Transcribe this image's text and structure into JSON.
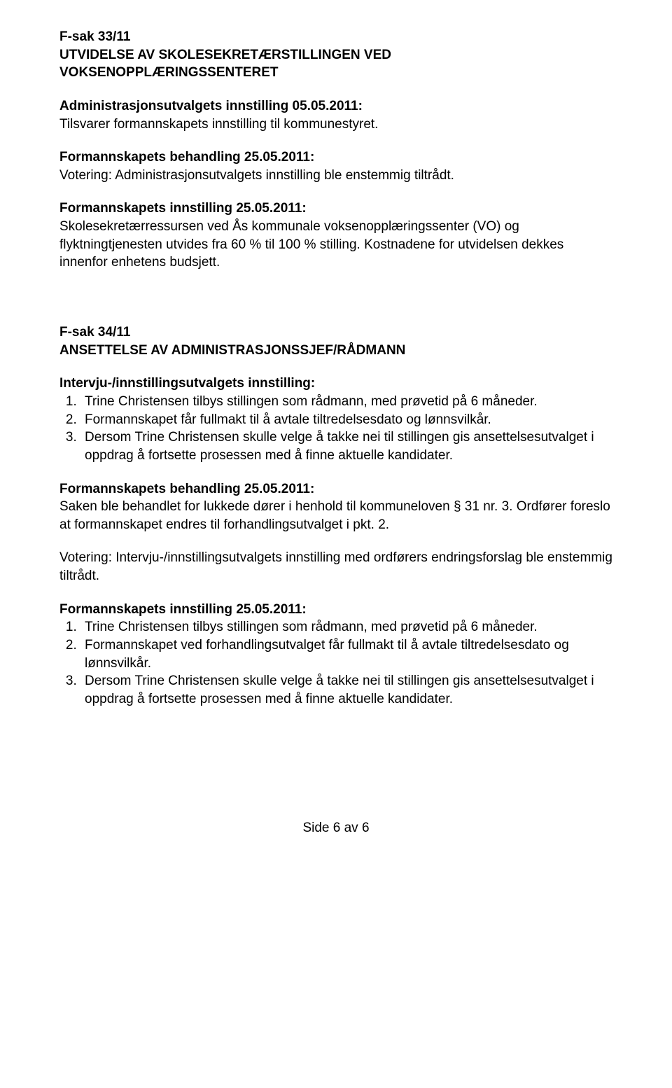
{
  "doc": {
    "text_color": "#000000",
    "background_color": "#ffffff",
    "font_family": "Arial, Helvetica, sans-serif",
    "base_font_size_pt": 14
  },
  "case1": {
    "id": "F-sak 33/11",
    "title_line1": "UTVIDELSE AV SKOLESEKRETÆRSTILLINGEN VED",
    "title_line2": "VOKSENOPPLÆRINGSSENTERET",
    "admin_heading": "Administrasjonsutvalgets innstilling 05.05.2011:",
    "admin_body": "Tilsvarer formannskapets innstilling til kommunestyret.",
    "behandling_heading": "Formannskapets behandling 25.05.2011:",
    "behandling_body": "Votering: Administrasjonsutvalgets innstilling ble enstemmig tiltrådt.",
    "innstilling_heading": "Formannskapets innstilling 25.05.2011:",
    "innstilling_body": "Skolesekretærressursen ved Ås kommunale voksenopplæringssenter (VO) og flyktningtjenesten utvides fra 60 % til 100 % stilling. Kostnadene for utvidelsen dekkes innenfor enhetens budsjett."
  },
  "case2": {
    "id": "F-sak 34/11",
    "title": "ANSETTELSE AV ADMINISTRASJONSSJEF/RÅDMANN",
    "intervju_heading": "Intervju-/innstillingsutvalgets innstilling:",
    "intervju_items": [
      "Trine Christensen tilbys stillingen som rådmann, med prøvetid på 6 måneder.",
      "Formannskapet får fullmakt til å avtale tiltredelsesdato og lønnsvilkår.",
      "Dersom Trine Christensen skulle velge å takke nei til stillingen gis ansettelsesutvalget i oppdrag å fortsette prosessen med å finne aktuelle kandidater."
    ],
    "behandling_heading": "Formannskapets behandling 25.05.2011:",
    "behandling_body": "Saken ble behandlet for lukkede dører i henhold til kommuneloven § 31 nr. 3. Ordfører foreslo at formannskapet endres til forhandlingsutvalget i pkt. 2.",
    "votering_body": "Votering: Intervju-/innstillingsutvalgets innstilling med ordførers endringsforslag ble enstemmig tiltrådt.",
    "innstilling_heading": "Formannskapets innstilling 25.05.2011:",
    "innstilling_items": [
      "Trine Christensen tilbys stillingen som rådmann, med prøvetid på 6 måneder.",
      "Formannskapet ved forhandlingsutvalget får fullmakt til å avtale tiltredelsesdato og lønnsvilkår.",
      "Dersom Trine Christensen skulle velge å takke nei til stillingen gis ansettelsesutvalget i oppdrag å fortsette prosessen med å finne aktuelle kandidater."
    ]
  },
  "footer": "Side 6 av 6"
}
